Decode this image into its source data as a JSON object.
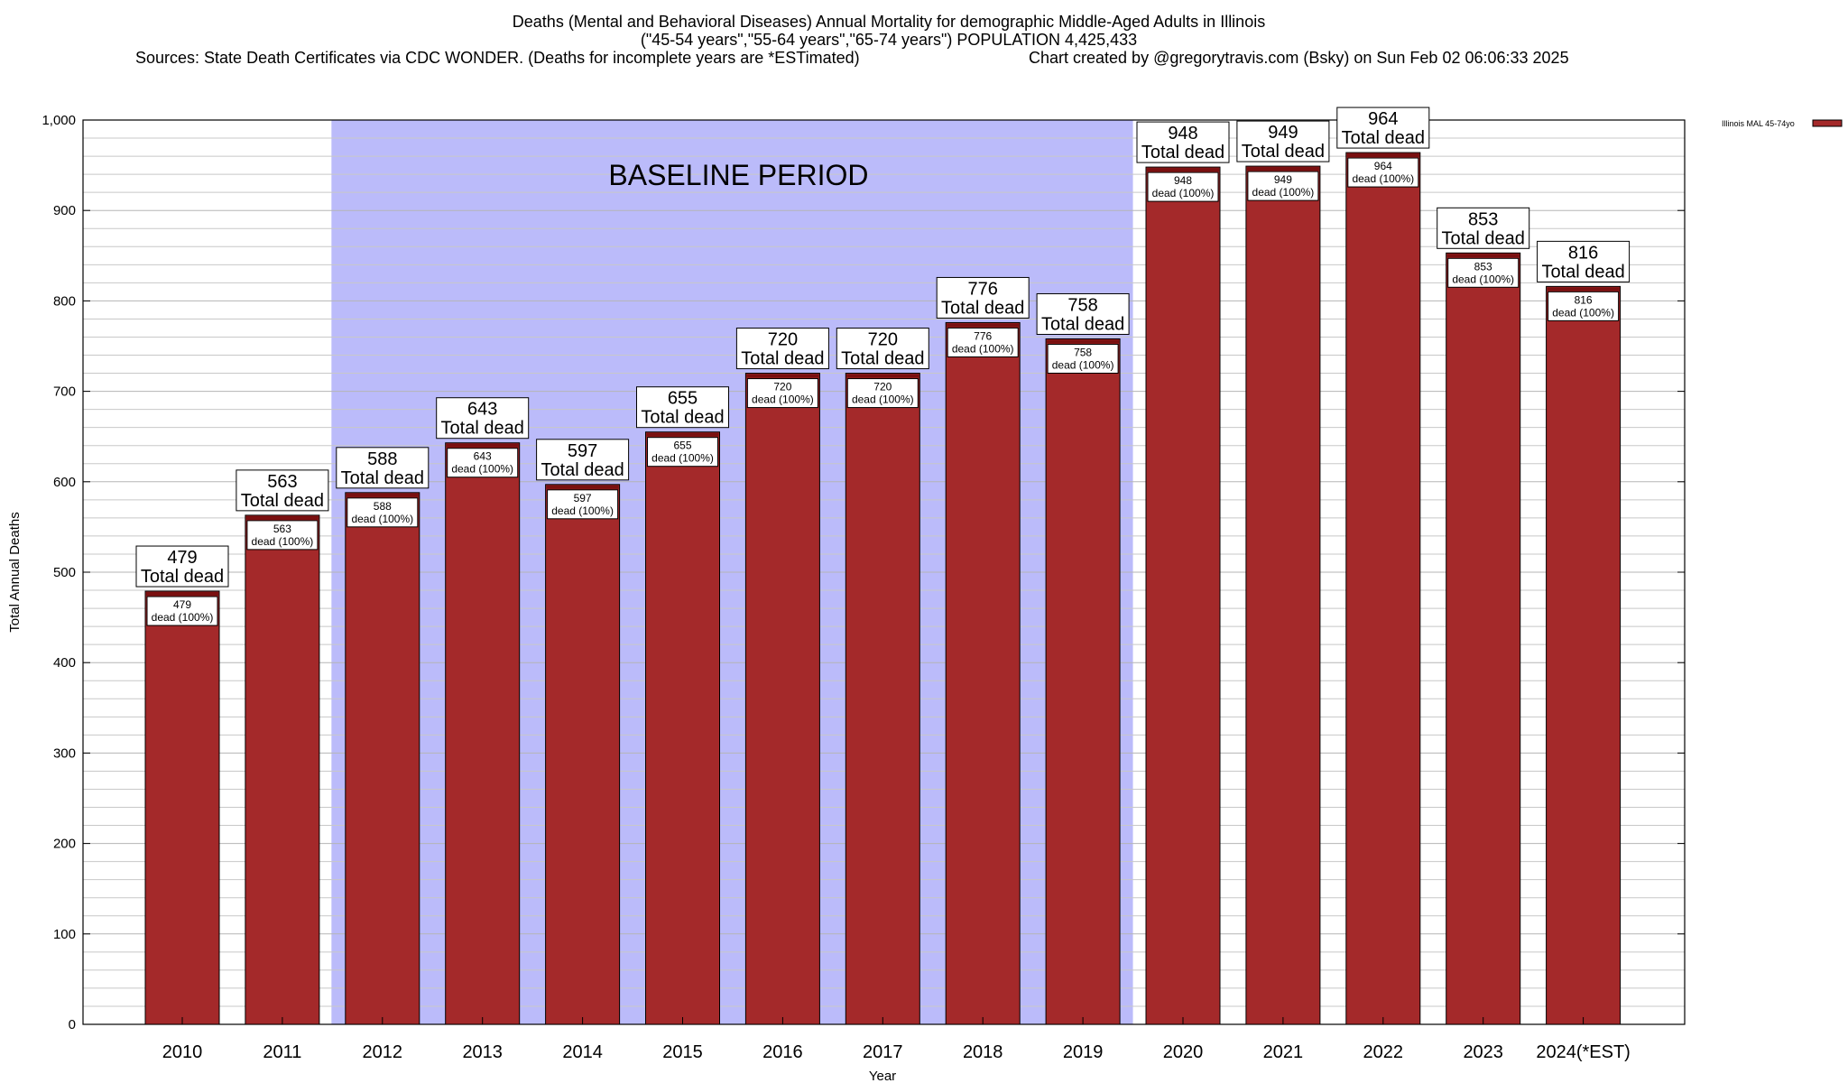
{
  "header": {
    "title_line1": "Deaths (Mental and Behavioral Diseases) Annual Mortality for demographic Middle-Aged Adults in Illinois",
    "title_line2": "(\"45-54 years\",\"55-64 years\",\"65-74 years\") POPULATION 4,425,433",
    "sources": "Sources: State Death Certificates via CDC WONDER. (Deaths for incomplete years are *ESTimated)",
    "credit": "Chart created by @gregorytravis.com (Bsky) on Sun Feb 02 06:06:33 2025"
  },
  "chart_data": {
    "type": "bar",
    "xlabel": "Year",
    "ylabel": "Total Annual Deaths",
    "ylim": [
      0,
      1000
    ],
    "ytick_labels": [
      "0",
      "100",
      "200",
      "300",
      "400",
      "500",
      "600",
      "700",
      "800",
      "900",
      "1,000"
    ],
    "categories": [
      "2010",
      "2011",
      "2012",
      "2013",
      "2014",
      "2015",
      "2016",
      "2017",
      "2018",
      "2019",
      "2020",
      "2021",
      "2022",
      "2023",
      "2024(*EST)"
    ],
    "series": [
      {
        "name": "Illinois MAL 45-74yo",
        "values": [
          479,
          563,
          588,
          643,
          597,
          655,
          720,
          720,
          776,
          758,
          948,
          949,
          964,
          853,
          816
        ]
      }
    ],
    "total_label": "Total dead",
    "inner_label_suffix": "dead (100%)",
    "baseline_band": {
      "label": "BASELINE PERIOD",
      "from_category": "2012",
      "to_category": "2019"
    },
    "grid": true,
    "legend": "top-right",
    "colors": {
      "bar": "#a4292a",
      "bar_top_stripe": "#7a1010",
      "baseline_band": "#bbbbfa",
      "grid": "#c8c8c8"
    }
  }
}
